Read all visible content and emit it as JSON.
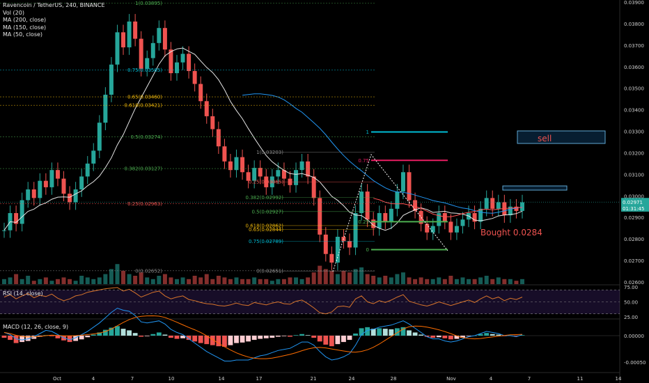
{
  "legend": {
    "title": "Ravencoin / TetherUS, 240, BINANCE",
    "vol": "Vol (20)",
    "ma200": "MA (200, close)",
    "ma150": "MA (150, close)",
    "ma50": "MA (50, close)"
  },
  "panes": {
    "rsi_label": "RSI (14, close)",
    "macd_label": "MACD (12, 26, close, 9)"
  },
  "colors": {
    "up": "#26a69a",
    "down": "#ef5350",
    "fib_green": "#4caf50",
    "fib_cyan": "#00bcd4",
    "fib_yellow": "#f0b90b",
    "fib_red": "#ef5350",
    "annotation_red": "#ef5350",
    "annotation_blue": "#5fa8d3",
    "rsi_line": "#d9752b",
    "macd_line": "#2196f3",
    "signal_line": "#ff6d00",
    "ma_white": "#e6e6e6",
    "ma_blue": "#2196f3",
    "ma_red": "#ff5252"
  },
  "chart_data": {
    "type": "candlestick",
    "pair": "RVN/USDT",
    "interval": "240",
    "exchange": "BINANCE",
    "x_ticks": [
      "Oct",
      "4",
      "7",
      "10",
      "14",
      "17",
      "21",
      "24",
      "28",
      "Nov",
      "4",
      "7",
      "11",
      "14"
    ],
    "y_ticks": [
      "0.03900",
      "0.03800",
      "0.03700",
      "0.03600",
      "0.03500",
      "0.03400",
      "0.03300",
      "0.03200",
      "0.03100",
      "0.03000",
      "0.02900",
      "0.02800",
      "0.02700",
      "0.02600"
    ],
    "ylim": [
      0.0259,
      0.0391
    ],
    "price_labels": [
      {
        "text": "0.02971",
        "price": 0.02971,
        "color": "#26a69a"
      },
      {
        "text": "01:31:45",
        "price": 0.02943,
        "color": "#26a69a"
      }
    ],
    "close_series": [
      0.0284,
      0.0292,
      0.0287,
      0.0298,
      0.0303,
      0.0299,
      0.0307,
      0.0304,
      0.0312,
      0.0308,
      0.0301,
      0.0297,
      0.0303,
      0.0309,
      0.0315,
      0.0321,
      0.0334,
      0.0347,
      0.0361,
      0.0376,
      0.0369,
      0.0381,
      0.0373,
      0.0359,
      0.0364,
      0.0371,
      0.0378,
      0.0368,
      0.0357,
      0.0362,
      0.0366,
      0.0358,
      0.0352,
      0.0344,
      0.0337,
      0.0331,
      0.0323,
      0.0316,
      0.0312,
      0.0318,
      0.0311,
      0.0307,
      0.0313,
      0.0309,
      0.0304,
      0.0309,
      0.0312,
      0.0308,
      0.0305,
      0.0312,
      0.0316,
      0.0309,
      0.0299,
      0.0282,
      0.0273,
      0.0269,
      0.0281,
      0.0279,
      0.0276,
      0.0292,
      0.0302,
      0.0289,
      0.0285,
      0.0292,
      0.0288,
      0.0294,
      0.0302,
      0.0311,
      0.0298,
      0.0293,
      0.0287,
      0.0283,
      0.0286,
      0.0292,
      0.0288,
      0.0283,
      0.0286,
      0.0289,
      0.0292,
      0.0288,
      0.0294,
      0.0299,
      0.0294,
      0.0297,
      0.0291,
      0.0295,
      0.0293,
      0.0297
    ],
    "fib_left": [
      {
        "label": "1(0.03895)",
        "price": 0.03895,
        "color": "#4caf50"
      },
      {
        "label": "0.75(0.03585)",
        "price": 0.03585,
        "color": "#00bcd4"
      },
      {
        "label": "0.65(0.03460)",
        "price": 0.0346,
        "color": "#f0b90b"
      },
      {
        "label": "0.618(0.03421)",
        "price": 0.03421,
        "color": "#f0b90b"
      },
      {
        "label": "0.5(0.03274)",
        "price": 0.03274,
        "color": "#4caf50"
      },
      {
        "label": "0.382(0.03127)",
        "price": 0.03127,
        "color": "#4caf50"
      },
      {
        "label": "0.25(0.02963)",
        "price": 0.02963,
        "color": "#ef5350"
      },
      {
        "label": "0(0.02652)",
        "price": 0.02652,
        "color": "#888888"
      }
    ],
    "fib_right": [
      {
        "label": "1(0.03203)",
        "price": 0.03203,
        "color": "#888888"
      },
      {
        "label": "0.25(0.03065)",
        "price": 0.03065,
        "color": "#ef5350"
      },
      {
        "label": "0.382(0.02992)",
        "price": 0.02992,
        "color": "#4caf50"
      },
      {
        "label": "0.5(0.02927)",
        "price": 0.02927,
        "color": "#4caf50"
      },
      {
        "label": "0.618(0.02862)",
        "price": 0.02862,
        "color": "#f0b90b"
      },
      {
        "label": "0.65(0.02844)",
        "price": 0.02844,
        "color": "#f0b90b"
      },
      {
        "label": "0.75(0.02789)",
        "price": 0.02789,
        "color": "#00bcd4"
      },
      {
        "label": "0(0.02651)",
        "price": 0.02651,
        "color": "#888888"
      }
    ],
    "fib_small": [
      {
        "label": "1",
        "price": 0.03297,
        "color": "#00bcd4"
      },
      {
        "label": "0.75",
        "price": 0.03165,
        "color": "#e91e63"
      },
      {
        "label": "0.25",
        "price": 0.0288,
        "color": "#4caf50"
      },
      {
        "label": "0",
        "price": 0.0275,
        "color": "#4caf50"
      }
    ],
    "annotations": [
      {
        "text": "sell",
        "color": "#ef5350"
      },
      {
        "text": "Bought 0.0284",
        "color": "#ef5350"
      }
    ],
    "rsi": {
      "levels": [
        70,
        50,
        30
      ],
      "tick_labels": [
        "75.00",
        "50.00",
        "25.00"
      ],
      "values": [
        58,
        62,
        55,
        60,
        64,
        57,
        61,
        59,
        63,
        56,
        52,
        55,
        60,
        62,
        66,
        68,
        70,
        72,
        73,
        74,
        68,
        71,
        65,
        58,
        62,
        66,
        68,
        60,
        55,
        58,
        60,
        54,
        52,
        49,
        47,
        46,
        44,
        43,
        45,
        48,
        45,
        44,
        49,
        47,
        45,
        48,
        50,
        47,
        46,
        51,
        53,
        47,
        40,
        32,
        30,
        33,
        42,
        43,
        41,
        55,
        60,
        50,
        47,
        52,
        49,
        53,
        58,
        62,
        51,
        48,
        45,
        43,
        46,
        50,
        47,
        44,
        47,
        50,
        53,
        49,
        55,
        60,
        55,
        58,
        52,
        56,
        54,
        58
      ]
    },
    "macd": {
      "tick_labels": [
        "0.00000",
        "-0.00050"
      ],
      "histogram": [
        -4e-05,
        -8e-05,
        -0.00014,
        -0.00012,
        -0.0001,
        -6e-05,
        -2e-05,
        1e-05,
        -1e-05,
        -5e-05,
        -9e-05,
        -0.00012,
        -0.0001,
        -7e-05,
        -3e-05,
        2e-05,
        6e-05,
        0.00011,
        0.00015,
        0.00018,
        0.00013,
        0.0001,
        5e-05,
        -2e-05,
        -1e-05,
        3e-05,
        6e-05,
        2e-05,
        -4e-05,
        -6e-05,
        -5e-05,
        -8e-05,
        -0.00011,
        -0.00014,
        -0.00016,
        -0.00018,
        -0.0002,
        -0.00021,
        -0.00018,
        -0.00014,
        -0.00013,
        -0.00011,
        -8e-05,
        -6e-05,
        -5e-05,
        -4e-05,
        -2e-05,
        -1e-05,
        -2e-05,
        1e-05,
        3e-05,
        1e-05,
        -4e-05,
        -0.00011,
        -0.00017,
        -0.0002,
        -0.00016,
        -0.00012,
        -8e-05,
        4e-05,
        0.00014,
        0.00016,
        0.00013,
        0.00014,
        0.00013,
        0.00012,
        0.00014,
        0.00016,
        0.0001,
        6e-05,
        2e-05,
        -2e-05,
        -4e-05,
        -3e-05,
        -5e-05,
        -7e-05,
        -6e-05,
        -4e-05,
        -1e-05,
        0.0,
        3e-05,
        5e-05,
        3e-05,
        2e-05,
        -1e-05,
        0.0,
        -1e-05,
        1e-05
      ],
      "macd_line": [
        6e-05,
        2e-05,
        -6e-05,
        -8e-05,
        -6e-05,
        -2e-05,
        4e-05,
        0.0001,
        8e-05,
        2e-05,
        -4e-05,
        -8e-05,
        -4e-05,
        2e-05,
        8e-05,
        0.00016,
        0.00024,
        0.00034,
        0.00044,
        0.00052,
        0.00048,
        0.00046,
        0.00038,
        0.00026,
        0.00024,
        0.00026,
        0.00028,
        0.00022,
        0.00012,
        6e-05,
        2e-05,
        -6e-05,
        -0.00014,
        -0.00022,
        -0.0003,
        -0.00036,
        -0.00042,
        -0.00048,
        -0.00048,
        -0.00046,
        -0.00046,
        -0.00046,
        -0.00042,
        -0.00038,
        -0.00036,
        -0.00032,
        -0.00028,
        -0.00026,
        -0.00024,
        -0.00018,
        -0.00012,
        -0.00012,
        -0.00018,
        -0.0003,
        -0.0004,
        -0.00046,
        -0.00044,
        -0.0004,
        -0.00034,
        -0.00018,
        2e-05,
        0.0001,
        0.00012,
        0.00016,
        0.00018,
        0.0002,
        0.00024,
        0.00028,
        0.00022,
        0.00014,
        6e-05,
        -2e-05,
        -6e-05,
        -6e-05,
        -0.0001,
        -0.00012,
        -0.0001,
        -6e-05,
        -2e-05,
        0.0,
        4e-05,
        8e-05,
        6e-05,
        4e-05,
        0.0,
        0.0,
        -2e-05,
        2e-05
      ]
    },
    "volume": [
      3,
      4,
      6,
      3,
      5,
      2,
      3,
      4,
      2,
      3,
      4,
      3,
      2,
      5,
      4,
      3,
      4,
      6,
      9,
      12,
      8,
      6,
      5,
      7,
      4,
      3,
      5,
      6,
      4,
      3,
      4,
      3,
      5,
      4,
      6,
      3,
      5,
      4,
      3,
      4,
      3,
      3,
      4,
      3,
      3,
      2,
      3,
      3,
      4,
      4,
      3,
      4,
      7,
      11,
      9,
      8,
      6,
      8,
      7,
      9,
      10,
      6,
      5,
      4,
      5,
      4,
      6,
      7,
      4,
      3,
      4,
      3,
      3,
      4,
      3,
      5,
      3,
      4,
      3,
      3,
      4,
      5,
      3,
      4,
      3,
      3,
      2,
      3
    ]
  }
}
